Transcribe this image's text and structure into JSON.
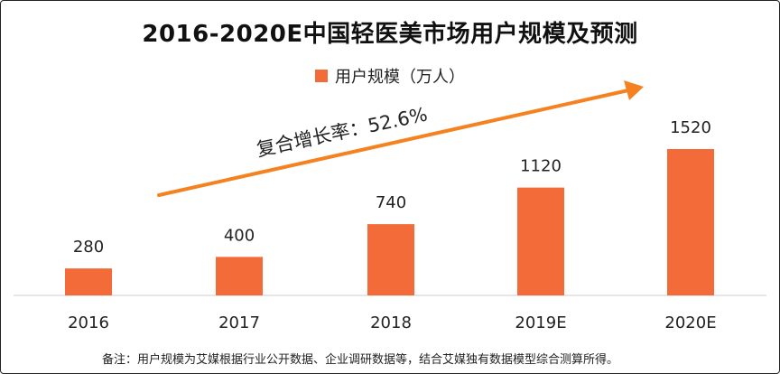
{
  "chart_data": {
    "type": "bar",
    "title": "2016-2020E中国轻医美市场用户规模及预测",
    "categories": [
      "2016",
      "2017",
      "2018",
      "2019E",
      "2020E"
    ],
    "series": [
      {
        "name": "用户规模（万人）",
        "values": [
          280,
          400,
          740,
          1120,
          1520
        ]
      }
    ],
    "data_labels": [
      "280",
      "400",
      "740",
      "1120",
      "1520"
    ],
    "annotation": "复合增长率：52.6%",
    "legend_position": "top-center",
    "grid": false,
    "ylim": [
      0,
      1600
    ]
  },
  "colors": {
    "bar": "#F26B38",
    "arrow": "#F58220",
    "axis": "#CCCCCC"
  },
  "footnote": "备注：用户规模为艾媒根据行业公开数据、企业调研数据等，结合艾媒独有数据模型综合测算所得。"
}
